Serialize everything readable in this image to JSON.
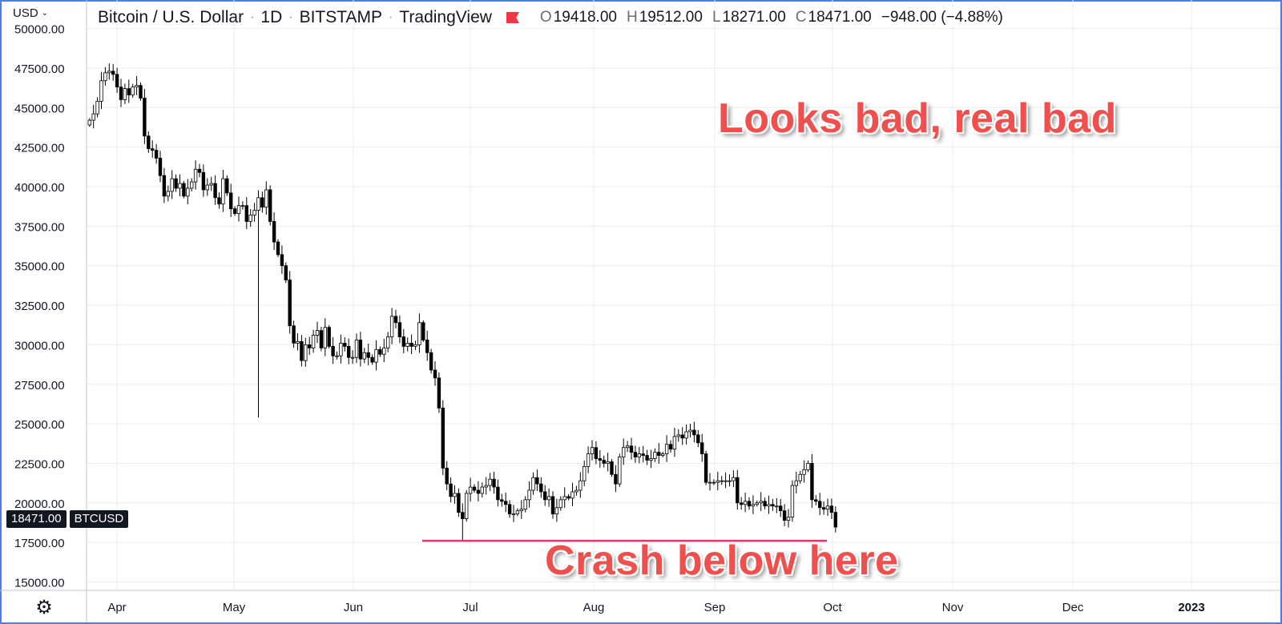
{
  "header": {
    "currency": "USD",
    "symbol_title": "Bitcoin / U.S. Dollar",
    "interval": "1D",
    "exchange": "BITSTAMP",
    "source": "TradingView",
    "ohlc": {
      "o_label": "O",
      "o": "19418.00",
      "h_label": "H",
      "h": "19512.00",
      "l_label": "L",
      "l": "18271.00",
      "c_label": "C",
      "c": "18471.00",
      "change": "−948.00 (−4.88%)"
    }
  },
  "price_badge": {
    "price": "18471.00",
    "ticker": "BTCUSD"
  },
  "annotations": {
    "top_text": "Looks bad, real bad",
    "bottom_text": "Crash below here",
    "support_line_price": 17600,
    "line_color": "#e8336a"
  },
  "colors": {
    "grid": "#e9eef5",
    "axis_line": "#bfc4cc",
    "candle_up_fill": "#ffffff",
    "candle_down_fill": "#000000",
    "candle_outline": "#000000",
    "annotation_text": "#f0504d",
    "frame_border": "#4f7ee8"
  },
  "icons": {
    "flag": "flag-icon",
    "dropdown": "chevron-down-icon",
    "settings": "gear-icon"
  },
  "chart_data": {
    "type": "candlestick",
    "symbol": "BTCUSD",
    "ylim": [
      14500,
      50500
    ],
    "y_ticks": [
      "50000.00",
      "47500.00",
      "45000.00",
      "42500.00",
      "40000.00",
      "37500.00",
      "35000.00",
      "32500.00",
      "30000.00",
      "27500.00",
      "25000.00",
      "22500.00",
      "20000.00",
      "17500.00",
      "15000.00"
    ],
    "x_ticks": [
      "Apr",
      "May",
      "Jun",
      "Jul",
      "Aug",
      "Sep",
      "Oct",
      "Nov",
      "Dec",
      "2023"
    ],
    "closes": [
      44200,
      44600,
      45400,
      46700,
      47200,
      47300,
      47100,
      46300,
      45500,
      46200,
      45800,
      46300,
      46400,
      45600,
      43200,
      42400,
      42300,
      41800,
      40700,
      39400,
      39700,
      40500,
      39900,
      40200,
      39400,
      39900,
      40300,
      41100,
      40900,
      39800,
      40100,
      40200,
      39300,
      38900,
      40500,
      39600,
      38600,
      38300,
      38800,
      38800,
      37800,
      38200,
      38500,
      39300,
      38700,
      39800,
      37800,
      36500,
      35700,
      35000,
      34100,
      31200,
      30100,
      30200,
      29000,
      30000,
      29800,
      30600,
      30900,
      29800,
      31100,
      29900,
      29300,
      29300,
      30100,
      29900,
      29200,
      29200,
      30300,
      29100,
      29500,
      29200,
      28900,
      29700,
      29400,
      29800,
      30500,
      31800,
      31400,
      30500,
      29900,
      30100,
      29900,
      30000,
      31400,
      30300,
      29500,
      28400,
      27900,
      26000,
      22200,
      21200,
      20400,
      20600,
      19400,
      19000,
      20600,
      21000,
      20800,
      20600,
      21000,
      21100,
      21500,
      21000,
      20200,
      20100,
      19900,
      19300,
      19300,
      19500,
      19600,
      20200,
      20800,
      21600,
      21200,
      20700,
      20200,
      20400,
      19300,
      19700,
      20200,
      20400,
      20300,
      20700,
      20800,
      21400,
      22300,
      23100,
      23500,
      22800,
      22700,
      22500,
      22600,
      21800,
      21200,
      22900,
      23500,
      23600,
      23200,
      22900,
      23100,
      23000,
      22700,
      22800,
      23200,
      23000,
      23100,
      23700,
      23400,
      24200,
      24300,
      24100,
      24500,
      24600,
      24300,
      23800,
      23100,
      21300,
      21300,
      21300,
      21400,
      21400,
      21400,
      21400,
      21600,
      20000,
      19900,
      20100,
      19800,
      19900,
      20000,
      20100,
      19800,
      19900,
      19800,
      19800,
      19500,
      18900,
      19100,
      21100,
      21400,
      21800,
      22100,
      22500,
      20200,
      20100,
      19700,
      19600,
      19800,
      19400,
      18471
    ]
  }
}
